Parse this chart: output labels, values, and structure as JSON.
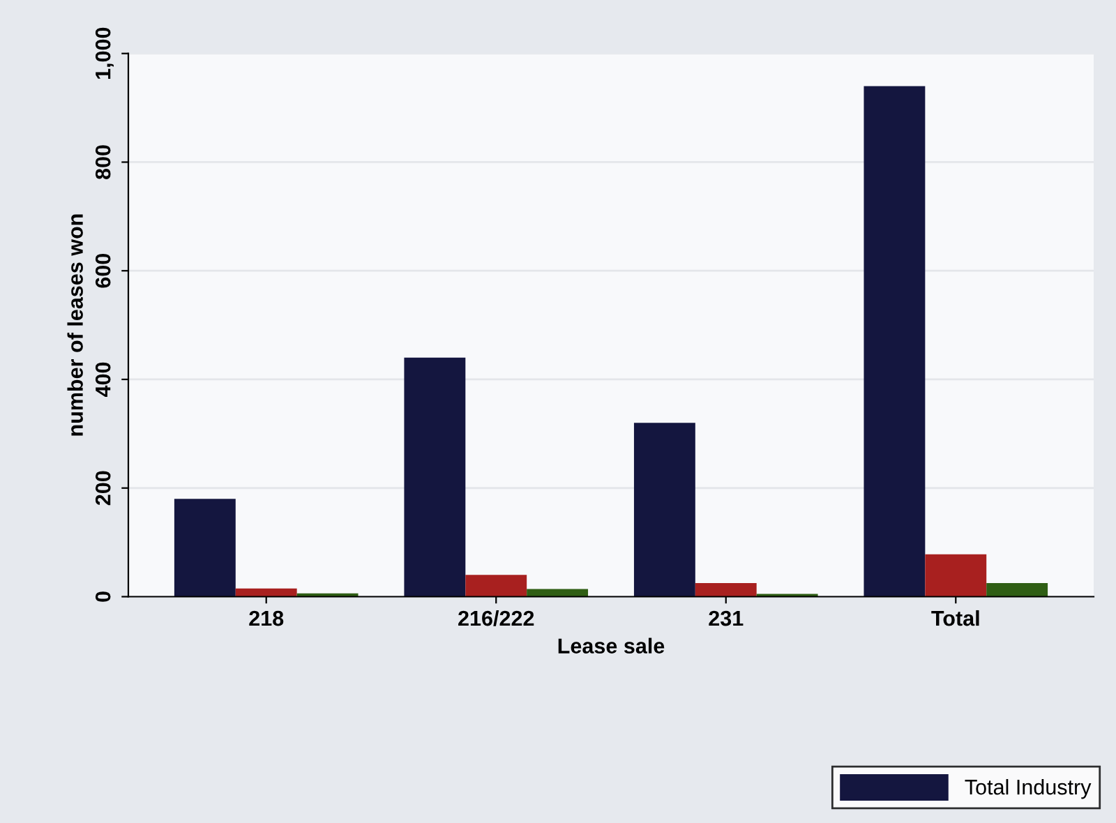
{
  "chart_data": {
    "type": "bar",
    "xlabel": "Lease sale",
    "ylabel": "number of leases won",
    "categories": [
      "218",
      "216/222",
      "231",
      "Total"
    ],
    "series": [
      {
        "name": "Total Industry",
        "color": "#14163f",
        "values": [
          180,
          440,
          320,
          940
        ]
      },
      {
        "color": "#a8201f",
        "values": [
          15,
          40,
          25,
          78
        ]
      },
      {
        "color": "#2f5e14",
        "values": [
          6,
          14,
          5,
          25
        ]
      }
    ],
    "ylim": [
      0,
      1000
    ],
    "yticks": [
      0,
      200,
      400,
      600,
      800,
      {
        "value": 1000,
        "label": "1,000"
      }
    ],
    "grid": "y",
    "legend": "bottom right"
  }
}
